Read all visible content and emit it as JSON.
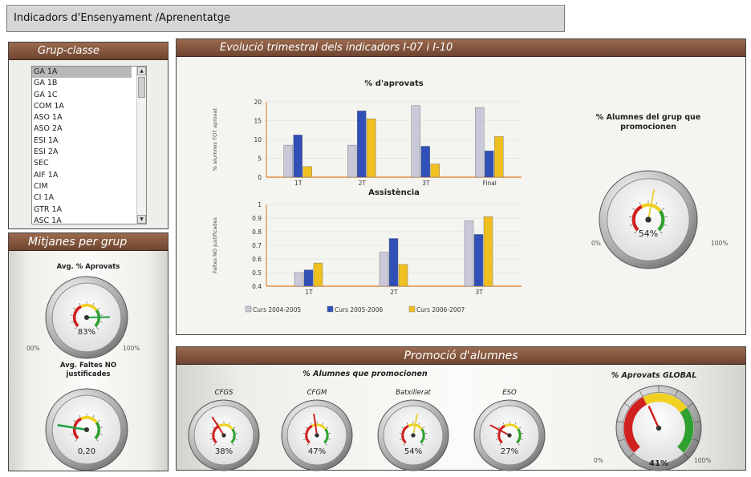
{
  "header": {
    "title": "Indicadors d'Ensenyament /Aprenentatge"
  },
  "grup_panel": {
    "title": "Grup-classe",
    "items": [
      "GA 1A",
      "GA 1B",
      "GA 1C",
      "COM 1A",
      "ASO 1A",
      "ASO 2A",
      "ESI 1A",
      "ESI 2A",
      "SEC",
      "AIF 1A",
      "CIM",
      "CI 1A",
      "GTR 1A",
      "ASC 1A"
    ],
    "selected": "GA 1A"
  },
  "mitjanes_panel": {
    "title": "Mitjanes per grup",
    "gauge1": {
      "caption": "Avg. % Aprovats",
      "value_text": "83%",
      "value": 83,
      "min_label": "00%",
      "max_label": "100%"
    },
    "gauge2": {
      "caption_line1": "Avg. Faltes NO",
      "caption_line2": "justificades",
      "value_text": "0,20",
      "value": 0.2
    }
  },
  "evolucio_panel": {
    "title": "Evolució trimestral dels indicadors I-07 i I-10",
    "promo_gauge": {
      "caption_line1": "% Alumnes del grup que",
      "caption_line2": "promocionen",
      "value_text": "54%",
      "value": 54,
      "min_label": "0%",
      "max_label": "100%"
    }
  },
  "promocio_panel": {
    "title": "Promoció d'alumnes",
    "subtitle": "% Alumnes que promocionen",
    "gauges": [
      {
        "label": "CFGS",
        "value_text": "38%",
        "value": 38
      },
      {
        "label": "CFGM",
        "value_text": "47%",
        "value": 47
      },
      {
        "label": "Batxillerat",
        "value_text": "54%",
        "value": 54
      },
      {
        "label": "ESO",
        "value_text": "27%",
        "value": 27
      }
    ],
    "global": {
      "caption": "% Aprovats GLOBAL",
      "value_text": "41%",
      "value": 41,
      "min_label": "0%",
      "max_label": "100%"
    }
  },
  "colors": {
    "series1": "#c8c8d8",
    "series2": "#3050b8",
    "series3": "#f0c020",
    "panel_head": "#8a5a40",
    "axis": "#e07a20"
  },
  "chart_data": [
    {
      "type": "bar",
      "title": "% d'aprovats",
      "ylabel": "% alumnes TOT aprovat",
      "xlabel": "",
      "categories": [
        "1T",
        "2T",
        "3T",
        "Final"
      ],
      "ylim": [
        0,
        20
      ],
      "yticks": [
        "0",
        "5",
        "10",
        "15",
        "20"
      ],
      "series": [
        {
          "name": "Curs 2004-2005",
          "values": [
            8.5,
            8.5,
            19,
            18.5
          ]
        },
        {
          "name": "Curs 2005-2006",
          "values": [
            11.2,
            17.6,
            8.2,
            7
          ]
        },
        {
          "name": "Curs 2006-2007",
          "values": [
            2.8,
            15.5,
            3.5,
            10.8
          ]
        }
      ],
      "grid": true
    },
    {
      "type": "bar",
      "title": "Assistència",
      "ylabel": "Faltes NO justificades",
      "xlabel": "",
      "categories": [
        "1T",
        "2T",
        "3T"
      ],
      "ylim": [
        0.4,
        1
      ],
      "yticks": [
        "0.4",
        "0.5",
        "0.6",
        "0.7",
        "0.8",
        "0.9",
        "1"
      ],
      "series": [
        {
          "name": "Curs 2004-2005",
          "values": [
            0.5,
            0.65,
            0.88
          ]
        },
        {
          "name": "Curs 2005-2006",
          "values": [
            0.52,
            0.75,
            0.78
          ]
        },
        {
          "name": "Curs 2006-2007",
          "values": [
            0.57,
            0.56,
            0.91
          ]
        }
      ],
      "legend": [
        "Curs 2004-2005",
        "Curs 2005-2006",
        "Curs 2006-2007"
      ],
      "legend_position": "bottom-left",
      "grid": true
    }
  ]
}
